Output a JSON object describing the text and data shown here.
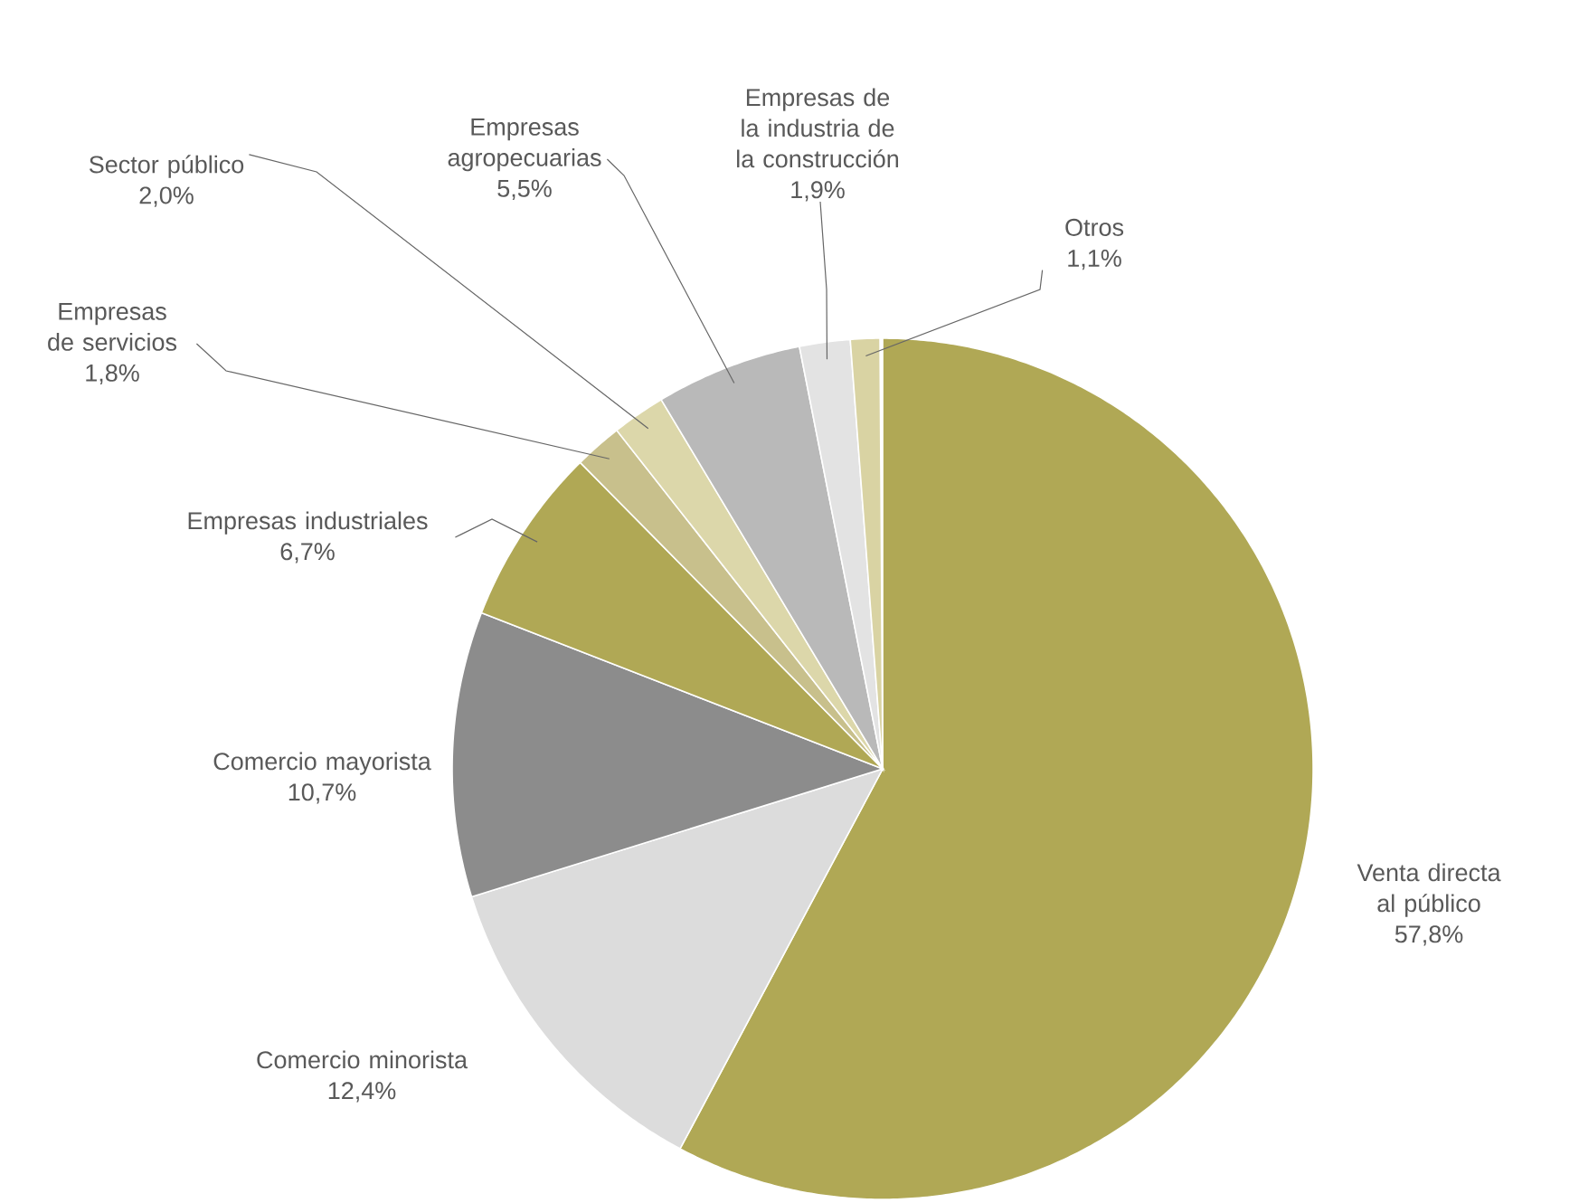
{
  "chart_data": {
    "type": "pie",
    "categories": [
      "Venta directa al público",
      "Comercio minorista",
      "Comercio mayorista",
      "Empresas industriales",
      "Empresas de servicios",
      "Sector público",
      "Empresas agropecuarias",
      "Empresas de la industria de la construcción",
      "Otros"
    ],
    "values": [
      57.8,
      12.4,
      10.7,
      6.7,
      1.8,
      2.0,
      5.5,
      1.9,
      1.1
    ],
    "value_labels": [
      "57,8%",
      "12,4%",
      "10,7%",
      "6,7%",
      "1,8%",
      "2,0%",
      "5,5%",
      "1,9%",
      "1,1%"
    ],
    "colors": [
      "#b0a855",
      "#dcdcdc",
      "#8c8c8c",
      "#b0a855",
      "#c8c08c",
      "#dcd7aa",
      "#b9b9b9",
      "#e3e3e3",
      "#d9d3a3"
    ]
  }
}
